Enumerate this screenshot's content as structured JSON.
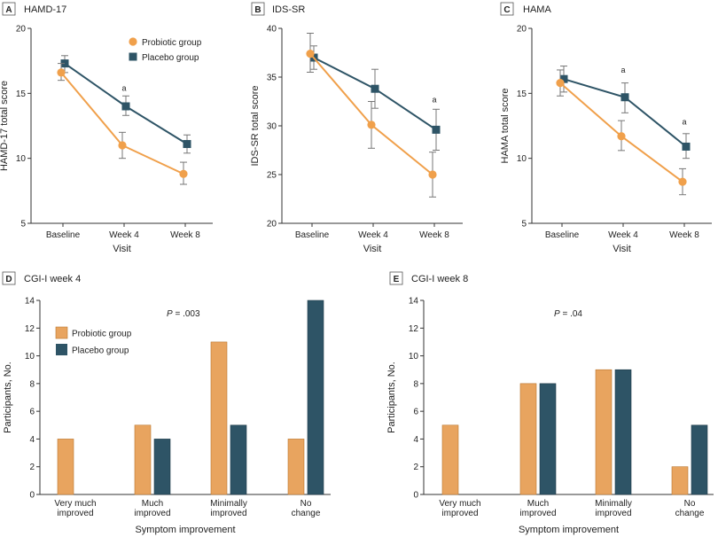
{
  "colors": {
    "probiotic": "#F0A04B",
    "probiotic_bar": "#E8A45F",
    "placebo": "#2E5466",
    "axis": "#333333",
    "errorbar": "#777777"
  },
  "chart_data": [
    {
      "id": "A",
      "letter": "A",
      "title": "HAMD-17",
      "type": "line",
      "xlabel": "Visit",
      "ylabel": "HAMD-17 total score",
      "categories": [
        "Baseline",
        "Week 4",
        "Week 8"
      ],
      "ylim": [
        5,
        20
      ],
      "yticks": [
        5,
        10,
        15,
        20
      ],
      "legend": {
        "position": "top-right",
        "entries": [
          "Probiotic group",
          "Placebo group"
        ]
      },
      "series": [
        {
          "name": "Probiotic group",
          "marker": "circle",
          "values": [
            16.6,
            11.0,
            8.8
          ],
          "err_low": [
            16.0,
            10.0,
            8.0
          ],
          "err_high": [
            17.3,
            12.0,
            9.7
          ]
        },
        {
          "name": "Placebo group",
          "marker": "square",
          "values": [
            17.3,
            14.0,
            11.1
          ],
          "err_low": [
            16.6,
            13.3,
            10.4
          ],
          "err_high": [
            17.9,
            14.8,
            11.8
          ]
        }
      ],
      "annotations": [
        {
          "category": "Week 4",
          "y": 15.2,
          "text": "a"
        }
      ]
    },
    {
      "id": "B",
      "letter": "B",
      "title": "IDS-SR",
      "type": "line",
      "xlabel": "Visit",
      "ylabel": "IDS-SR total score",
      "categories": [
        "Baseline",
        "Week 4",
        "Week 8"
      ],
      "ylim": [
        20,
        40
      ],
      "yticks": [
        20,
        25,
        30,
        35,
        40
      ],
      "series": [
        {
          "name": "Probiotic group",
          "marker": "circle",
          "values": [
            37.4,
            30.1,
            25.0
          ],
          "err_low": [
            35.5,
            27.7,
            22.7
          ],
          "err_high": [
            39.5,
            32.5,
            27.3
          ]
        },
        {
          "name": "Placebo group",
          "marker": "square",
          "values": [
            37.0,
            33.8,
            29.6
          ],
          "err_low": [
            35.8,
            31.8,
            27.5
          ],
          "err_high": [
            38.2,
            35.8,
            31.7
          ]
        }
      ],
      "annotations": [
        {
          "category": "Week 8",
          "y": 32.4,
          "text": "a"
        }
      ]
    },
    {
      "id": "C",
      "letter": "C",
      "title": "HAMA",
      "type": "line",
      "xlabel": "Visit",
      "ylabel": "HAMA total score",
      "categories": [
        "Baseline",
        "Week 4",
        "Week 8"
      ],
      "ylim": [
        5,
        20
      ],
      "yticks": [
        5,
        10,
        15,
        20
      ],
      "series": [
        {
          "name": "Probiotic group",
          "marker": "circle",
          "values": [
            15.8,
            11.7,
            8.2
          ],
          "err_low": [
            14.8,
            10.6,
            7.2
          ],
          "err_high": [
            16.8,
            12.9,
            9.2
          ]
        },
        {
          "name": "Placebo group",
          "marker": "square",
          "values": [
            16.1,
            14.7,
            10.9
          ],
          "err_low": [
            15.1,
            13.5,
            10.0
          ],
          "err_high": [
            17.1,
            15.8,
            11.9
          ]
        }
      ],
      "annotations": [
        {
          "category": "Week 4",
          "y": 16.6,
          "text": "a"
        },
        {
          "category": "Week 8",
          "y": 12.6,
          "text": "a"
        }
      ]
    },
    {
      "id": "D",
      "letter": "D",
      "title": "CGI-I week 4",
      "type": "bar",
      "xlabel": "Symptom improvement",
      "ylabel": "Participants, No.",
      "categories": [
        "Very much improved",
        "Much improved",
        "Minimally improved",
        "No change"
      ],
      "category_lines": [
        [
          "Very much",
          "improved"
        ],
        [
          "Much",
          "improved"
        ],
        [
          "Minimally",
          "improved"
        ],
        [
          "No",
          "change"
        ]
      ],
      "ylim": [
        0,
        14
      ],
      "yticks": [
        0,
        2,
        4,
        6,
        8,
        10,
        12,
        14
      ],
      "p_prefix": "P",
      "p_value": " = .003",
      "legend": {
        "position": "top-left",
        "entries": [
          "Probiotic group",
          "Placebo group"
        ]
      },
      "series": [
        {
          "name": "Probiotic group",
          "values": [
            4,
            5,
            11,
            4
          ]
        },
        {
          "name": "Placebo group",
          "values": [
            0,
            4,
            5,
            14
          ]
        }
      ]
    },
    {
      "id": "E",
      "letter": "E",
      "title": "CGI-I week 8",
      "type": "bar",
      "xlabel": "Symptom improvement",
      "ylabel": "Participants, No.",
      "categories": [
        "Very much improved",
        "Much improved",
        "Minimally improved",
        "No change"
      ],
      "category_lines": [
        [
          "Very much",
          "improved"
        ],
        [
          "Much",
          "improved"
        ],
        [
          "Minimally",
          "improved"
        ],
        [
          "No",
          "change"
        ]
      ],
      "ylim": [
        0,
        14
      ],
      "yticks": [
        0,
        2,
        4,
        6,
        8,
        10,
        12,
        14
      ],
      "p_prefix": "P",
      "p_value": " = .04",
      "series": [
        {
          "name": "Probiotic group",
          "values": [
            5,
            8,
            9,
            2
          ]
        },
        {
          "name": "Placebo group",
          "values": [
            0,
            8,
            9,
            5
          ]
        }
      ]
    }
  ]
}
